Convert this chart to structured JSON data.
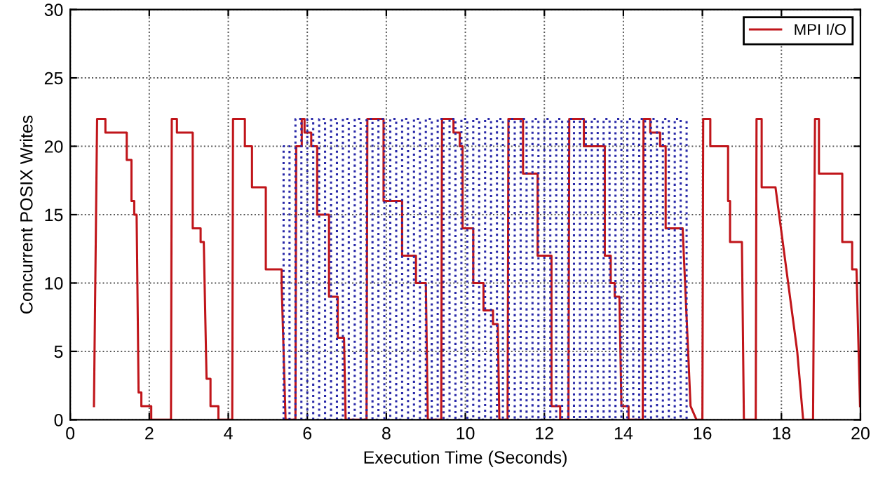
{
  "chart_data": {
    "type": "line",
    "xlabel": "Execution Time (Seconds)",
    "ylabel": "Concurrent POSIX Writes",
    "xlim": [
      0,
      20
    ],
    "xticks": [
      0,
      2,
      4,
      6,
      8,
      10,
      12,
      14,
      16,
      18,
      20
    ],
    "ylim": [
      0,
      30
    ],
    "yticks": [
      0,
      5,
      10,
      15,
      20,
      25,
      30
    ],
    "grid": true,
    "legend": "top right",
    "marker": "none",
    "series": [
      {
        "name": "MPI I/O",
        "color": "#c0151a",
        "line_style": "solid",
        "x": [
          0.6,
          0.68,
          0.89,
          0.89,
          1.43,
          1.43,
          1.55,
          1.55,
          1.62,
          1.62,
          1.68,
          1.73,
          1.8,
          1.8,
          2.05,
          2.05,
          2.55,
          2.57,
          2.7,
          2.7,
          3.1,
          3.1,
          3.3,
          3.3,
          3.38,
          3.45,
          3.55,
          3.55,
          3.75,
          3.75,
          4.1,
          4.12,
          4.42,
          4.42,
          4.6,
          4.6,
          4.95,
          4.95,
          5.35,
          5.35,
          5.45,
          5.7,
          5.72,
          5.86,
          5.86,
          5.93,
          5.93,
          6.1,
          6.1,
          6.25,
          6.25,
          6.55,
          6.55,
          6.77,
          6.77,
          6.93,
          6.97,
          7.5,
          7.52,
          7.93,
          7.93,
          8.4,
          8.4,
          8.75,
          8.75,
          9.0,
          9.05,
          9.39,
          9.41,
          9.7,
          9.7,
          9.86,
          9.86,
          9.93,
          9.93,
          10.2,
          10.2,
          10.46,
          10.46,
          10.7,
          10.7,
          10.82,
          10.86,
          11.07,
          11.09,
          11.46,
          11.46,
          11.83,
          11.83,
          12.18,
          12.18,
          12.4,
          12.4,
          12.61,
          12.63,
          13.0,
          13.0,
          13.53,
          13.53,
          13.68,
          13.68,
          13.78,
          13.78,
          13.9,
          13.95,
          14.13,
          14.13,
          14.49,
          14.51,
          14.68,
          14.68,
          14.93,
          14.93,
          15.07,
          15.07,
          15.5,
          15.7,
          15.85,
          16.0,
          16.02,
          16.2,
          16.2,
          16.65,
          16.65,
          16.7,
          16.7,
          17.0,
          17.05,
          17.35,
          17.37,
          17.5,
          17.5,
          17.85,
          18.4,
          18.55,
          18.8,
          18.85,
          18.95,
          18.95,
          19.54,
          19.54,
          19.79,
          19.79,
          19.9,
          19.99
        ],
        "values": [
          1,
          22,
          22,
          21,
          21,
          19,
          19,
          16,
          16,
          15,
          15,
          2,
          2,
          1,
          1,
          0,
          0,
          22,
          22,
          21,
          21,
          14,
          14,
          13,
          13,
          3,
          3,
          1,
          1,
          0,
          0,
          22,
          22,
          20,
          20,
          17,
          17,
          11,
          11,
          10,
          0,
          0,
          20,
          20,
          22,
          22,
          21,
          21,
          20,
          20,
          15,
          15,
          9,
          9,
          6,
          6,
          0,
          0,
          22,
          22,
          16,
          16,
          12,
          12,
          10,
          10,
          0,
          0,
          22,
          22,
          21,
          21,
          20,
          20,
          14,
          14,
          10,
          10,
          8,
          8,
          7,
          7,
          0,
          0,
          22,
          22,
          18,
          18,
          12,
          12,
          1,
          1,
          0,
          0,
          22,
          22,
          20,
          20,
          12,
          12,
          10,
          10,
          9,
          9,
          1,
          1,
          0,
          0,
          22,
          22,
          21,
          21,
          20,
          20,
          14,
          14,
          1,
          0,
          0,
          22,
          22,
          20,
          20,
          16,
          16,
          13,
          13,
          0,
          0,
          22,
          22,
          17,
          17,
          5,
          0,
          0,
          22,
          22,
          18,
          18,
          13,
          13,
          11,
          11,
          1
        ]
      },
      {
        "color": "#2828a8",
        "line_style": "dotted",
        "x": [
          5.4,
          5.4,
          5.55,
          5.55,
          5.7,
          5.7,
          5.85,
          5.85,
          6.0,
          6.0,
          6.15,
          6.15,
          6.3,
          6.3,
          6.45,
          6.45,
          6.6,
          6.6,
          6.75,
          6.75,
          6.9,
          6.9,
          7.05,
          7.05,
          7.2,
          7.2,
          7.35,
          7.35,
          7.5,
          7.5,
          7.65,
          7.65,
          7.8,
          7.8,
          7.95,
          7.95,
          8.1,
          8.1,
          8.25,
          8.25,
          8.4,
          8.4,
          8.55,
          8.55,
          8.7,
          8.7,
          8.85,
          8.85,
          9.0,
          9.0,
          9.15,
          9.15,
          9.3,
          9.3,
          9.45,
          9.45,
          9.6,
          9.6,
          9.75,
          9.75,
          9.9,
          9.9,
          10.05,
          10.05,
          10.2,
          10.2,
          10.35,
          10.35,
          10.5,
          10.5,
          10.65,
          10.65,
          10.8,
          10.8,
          10.95,
          10.95,
          11.1,
          11.1,
          11.25,
          11.25,
          11.4,
          11.4,
          11.55,
          11.55,
          11.7,
          11.7,
          11.85,
          11.85,
          12.0,
          12.0,
          12.15,
          12.15,
          12.3,
          12.3,
          12.45,
          12.45,
          12.6,
          12.6,
          12.75,
          12.75,
          12.9,
          12.9,
          13.05,
          13.05,
          13.2,
          13.2,
          13.35,
          13.35,
          13.5,
          13.5,
          13.65,
          13.65,
          13.8,
          13.8,
          13.95,
          13.95,
          14.1,
          14.1,
          14.25,
          14.25,
          14.4,
          14.4,
          14.55,
          14.55,
          14.7,
          14.7,
          14.85,
          14.85,
          15.0,
          15.0,
          15.15,
          15.15,
          15.3,
          15.3,
          15.45,
          15.45,
          15.6,
          15.6
        ],
        "values": [
          0,
          20,
          20,
          0,
          0,
          22,
          22,
          0,
          0,
          22,
          22,
          0,
          0,
          22,
          22,
          0,
          0,
          22,
          22,
          0,
          0,
          22,
          22,
          0,
          0,
          22,
          22,
          0,
          0,
          22,
          22,
          0,
          0,
          22,
          22,
          0,
          0,
          22,
          22,
          0,
          0,
          22,
          22,
          0,
          0,
          22,
          22,
          0,
          0,
          22,
          22,
          0,
          0,
          22,
          22,
          0,
          0,
          22,
          22,
          0,
          0,
          22,
          22,
          0,
          0,
          22,
          22,
          0,
          0,
          22,
          22,
          0,
          0,
          22,
          22,
          0,
          0,
          22,
          22,
          0,
          0,
          22,
          22,
          0,
          0,
          22,
          22,
          0,
          0,
          22,
          22,
          0,
          0,
          22,
          22,
          0,
          0,
          22,
          22,
          0,
          0,
          22,
          22,
          0,
          0,
          22,
          22,
          0,
          0,
          22,
          22,
          0,
          0,
          22,
          22,
          0,
          0,
          22,
          22,
          0,
          0,
          22,
          22,
          0,
          0,
          22,
          22,
          0,
          0,
          22,
          22,
          0,
          0,
          22,
          22,
          0,
          0,
          22
        ]
      }
    ]
  }
}
